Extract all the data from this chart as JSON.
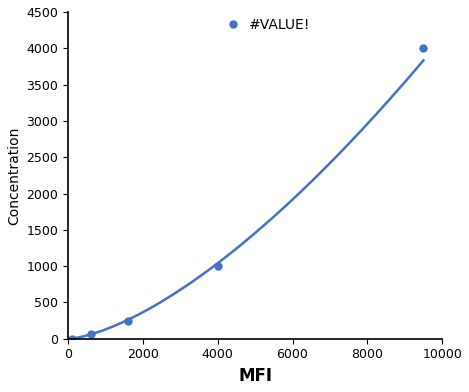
{
  "x": [
    100,
    600,
    1600,
    4000,
    9500
  ],
  "y": [
    0,
    62,
    250,
    1000,
    4000
  ],
  "line_color": "#4472C4",
  "marker_color": "#4472C4",
  "marker_style": "o",
  "marker_size": 5,
  "line_width": 1.8,
  "xlabel": "MFI",
  "ylabel": "Concentration",
  "xlim": [
    0,
    10000
  ],
  "ylim": [
    0,
    4500
  ],
  "xticks": [
    0,
    2000,
    4000,
    6000,
    8000,
    10000
  ],
  "yticks": [
    0,
    500,
    1000,
    1500,
    2000,
    2500,
    3000,
    3500,
    4000,
    4500
  ],
  "legend_label": "#VALUE!",
  "xlabel_fontsize": 12,
  "ylabel_fontsize": 10,
  "tick_fontsize": 9,
  "legend_fontsize": 10,
  "background_color": "#ffffff"
}
